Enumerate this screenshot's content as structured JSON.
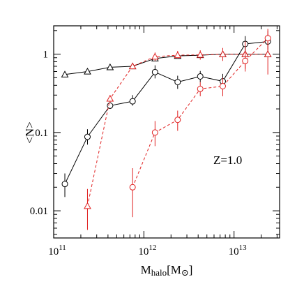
{
  "chart_data": {
    "type": "line",
    "xlabel_main": "M",
    "xlabel_sub": "halo",
    "xlabel_unit_open": "[M",
    "xlabel_unit_close": "]",
    "ylabel": "<N>",
    "annotation": "Z=1.0",
    "xscale": "log",
    "yscale": "log",
    "xlim": [
      100000000000.0,
      32000000000000.0
    ],
    "ylim": [
      0.0045,
      2.3
    ],
    "x_ticks": [
      {
        "value": 100000000000.0,
        "base": "10",
        "exp": "11"
      },
      {
        "value": 1000000000000.0,
        "base": "10",
        "exp": "12"
      },
      {
        "value": 10000000000000.0,
        "base": "10",
        "exp": "13"
      }
    ],
    "y_ticks": [
      {
        "value": 0.01,
        "label": "0.01"
      },
      {
        "value": 0.1,
        "label": "0.1"
      },
      {
        "value": 1,
        "label": "1"
      }
    ],
    "colors": {
      "black": "#000000",
      "red": "#e02020"
    },
    "series": [
      {
        "color": "#000000",
        "marker": "triangle",
        "linestyle": "solid",
        "points": [
          {
            "x": 133000000000.0,
            "y": 0.55
          },
          {
            "x": 237000000000.0,
            "y": 0.6
          },
          {
            "x": 422000000000.0,
            "y": 0.68
          },
          {
            "x": 750000000000.0,
            "y": 0.7
          },
          {
            "x": 1330000000000.0,
            "y": 0.88
          },
          {
            "x": 2370000000000.0,
            "y": 0.95
          },
          {
            "x": 4220000000000.0,
            "y": 0.97
          },
          {
            "x": 7500000000000.0,
            "y": 1.0
          },
          {
            "x": 13300000000000.0,
            "y": 1.0
          },
          {
            "x": 23700000000000.0,
            "y": 1.0
          }
        ]
      },
      {
        "color": "#000000",
        "marker": "circle",
        "linestyle": "solid",
        "points": [
          {
            "x": 133000000000.0,
            "y": 0.022,
            "ylo": 0.015,
            "yhi": 0.03
          },
          {
            "x": 237000000000.0,
            "y": 0.088,
            "ylo": 0.07,
            "yhi": 0.11
          },
          {
            "x": 422000000000.0,
            "y": 0.22,
            "ylo": 0.2,
            "yhi": 0.24
          },
          {
            "x": 750000000000.0,
            "y": 0.25,
            "ylo": 0.22,
            "yhi": 0.3
          },
          {
            "x": 1330000000000.0,
            "y": 0.59,
            "ylo": 0.49,
            "yhi": 0.72
          },
          {
            "x": 2370000000000.0,
            "y": 0.44,
            "ylo": 0.36,
            "yhi": 0.53
          },
          {
            "x": 4220000000000.0,
            "y": 0.52,
            "ylo": 0.44,
            "yhi": 0.61
          },
          {
            "x": 7500000000000.0,
            "y": 0.45,
            "ylo": 0.38,
            "yhi": 0.56
          },
          {
            "x": 13300000000000.0,
            "y": 1.35,
            "ylo": 1.05,
            "yhi": 1.7
          },
          {
            "x": 23700000000000.0,
            "y": 1.45,
            "ylo": 1.15,
            "yhi": 1.8
          }
        ]
      },
      {
        "color": "#e02020",
        "marker": "triangle",
        "linestyle": "dashed",
        "points": [
          {
            "x": 237000000000.0,
            "y": 0.0115,
            "ylo": 0.0057,
            "yhi": 0.019
          },
          {
            "x": 422000000000.0,
            "y": 0.27,
            "ylo": 0.24,
            "yhi": 0.3
          },
          {
            "x": 750000000000.0,
            "y": 0.7,
            "ylo": 0.67,
            "yhi": 0.74
          },
          {
            "x": 1330000000000.0,
            "y": 0.93,
            "ylo": 0.82,
            "yhi": 1.05
          },
          {
            "x": 2370000000000.0,
            "y": 0.97,
            "ylo": 0.88,
            "yhi": 1.1
          },
          {
            "x": 4220000000000.0,
            "y": 0.98,
            "ylo": 0.85,
            "yhi": 1.12
          },
          {
            "x": 7500000000000.0,
            "y": 1.0,
            "ylo": 0.82,
            "yhi": 1.2
          },
          {
            "x": 13300000000000.0,
            "y": 1.0,
            "ylo": 0.65,
            "yhi": 1.45
          },
          {
            "x": 23700000000000.0,
            "y": 1.0,
            "ylo": 0.55,
            "yhi": 2.0
          }
        ]
      },
      {
        "color": "#e02020",
        "marker": "circle",
        "linestyle": "dashed",
        "points": [
          {
            "x": 750000000000.0,
            "y": 0.02,
            "ylo": 0.0083,
            "yhi": 0.035
          },
          {
            "x": 1330000000000.0,
            "y": 0.1,
            "ylo": 0.067,
            "yhi": 0.14
          },
          {
            "x": 2370000000000.0,
            "y": 0.145,
            "ylo": 0.105,
            "yhi": 0.19
          },
          {
            "x": 4220000000000.0,
            "y": 0.36,
            "ylo": 0.29,
            "yhi": 0.44
          },
          {
            "x": 7500000000000.0,
            "y": 0.39,
            "ylo": 0.29,
            "yhi": 0.5
          },
          {
            "x": 13300000000000.0,
            "y": 0.82,
            "ylo": 0.6,
            "yhi": 1.05
          },
          {
            "x": 23700000000000.0,
            "y": 1.6,
            "ylo": 1.1,
            "yhi": 2.1
          }
        ]
      }
    ]
  }
}
